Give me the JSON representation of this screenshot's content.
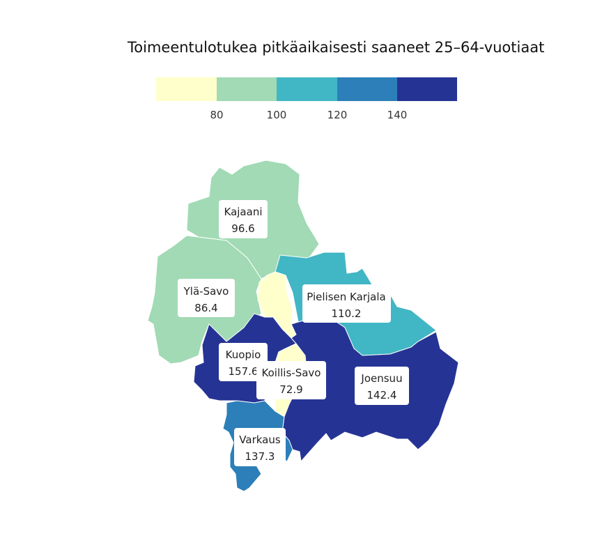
{
  "title": "Toimeentulotukea pitkäaikaisesti saaneet 25–64-vuotiaat",
  "legend": {
    "ticks": [
      "80",
      "100",
      "120",
      "140"
    ],
    "colors": [
      "#ffffcc",
      "#a1dab4",
      "#41b6c4",
      "#2c7fb8",
      "#253494"
    ]
  },
  "regions": {
    "kajaani": {
      "name": "Kajaani",
      "value": "96.6",
      "color": "#a1dab4"
    },
    "yla_savo": {
      "name": "Ylä-Savo",
      "value": "86.4",
      "color": "#a1dab4"
    },
    "pielisen_karjala": {
      "name": "Pielisen Karjala",
      "value": "110.2",
      "color": "#41b6c4"
    },
    "kuopio": {
      "name": "Kuopio",
      "value": "157.6",
      "color": "#253494"
    },
    "koillis_savo": {
      "name": "Koillis-Savo",
      "value": "72.9",
      "color": "#ffffcc"
    },
    "joensuu": {
      "name": "Joensuu",
      "value": "142.4",
      "color": "#253494"
    },
    "varkaus": {
      "name": "Varkaus",
      "value": "137.3",
      "color": "#2c7fb8"
    }
  }
}
